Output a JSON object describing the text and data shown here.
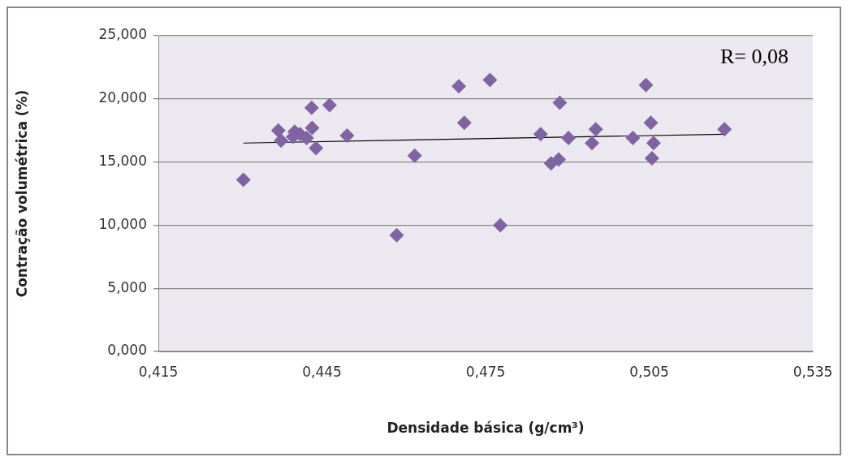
{
  "chart_data": {
    "type": "scatter",
    "xlabel": "Densidade básica (g/cm³)",
    "ylabel": "Contração volumétrica (%)",
    "xlim": [
      0.415,
      0.535
    ],
    "xticks": [
      {
        "value": 0.415,
        "label": "0,415"
      },
      {
        "value": 0.445,
        "label": "0,445"
      },
      {
        "value": 0.475,
        "label": "0,475"
      },
      {
        "value": 0.505,
        "label": "0,505"
      },
      {
        "value": 0.535,
        "label": "0,535"
      }
    ],
    "ylim": [
      0,
      25
    ],
    "yticks": [
      {
        "value": 0,
        "label": "0,000"
      },
      {
        "value": 5,
        "label": "5,000"
      },
      {
        "value": 10,
        "label": "10,000"
      },
      {
        "value": 15,
        "label": "15,000"
      },
      {
        "value": 20,
        "label": "20,000"
      },
      {
        "value": 25,
        "label": "25,000"
      }
    ],
    "grid": "y",
    "legend": false,
    "annotations": [
      "R= 0,08"
    ],
    "series": [
      {
        "color": "#8064a2",
        "marker": "diamond",
        "x": [
          0.4306,
          0.437,
          0.4375,
          0.4397,
          0.44,
          0.441,
          0.4422,
          0.4432,
          0.4431,
          0.4439,
          0.4464,
          0.4496,
          0.4587,
          0.462,
          0.4701,
          0.4711,
          0.4758,
          0.4777,
          0.4851,
          0.487,
          0.4884,
          0.4886,
          0.4902,
          0.4945,
          0.4952,
          0.502,
          0.5044,
          0.5053,
          0.5058,
          0.5055,
          0.5188
        ],
        "values": [
          13.6,
          17.5,
          16.7,
          17.0,
          17.4,
          17.2,
          16.9,
          17.7,
          19.3,
          16.1,
          19.5,
          17.1,
          9.2,
          15.5,
          21.0,
          18.1,
          21.5,
          10.0,
          17.2,
          14.9,
          15.2,
          19.7,
          16.9,
          16.5,
          17.6,
          16.9,
          21.1,
          18.1,
          16.5,
          15.3,
          17.6
        ]
      },
      {
        "type": "line",
        "marker": "none",
        "color": "#000000",
        "x": [
          0.4306,
          0.5188
        ],
        "values": [
          16.5,
          17.2
        ]
      }
    ]
  }
}
